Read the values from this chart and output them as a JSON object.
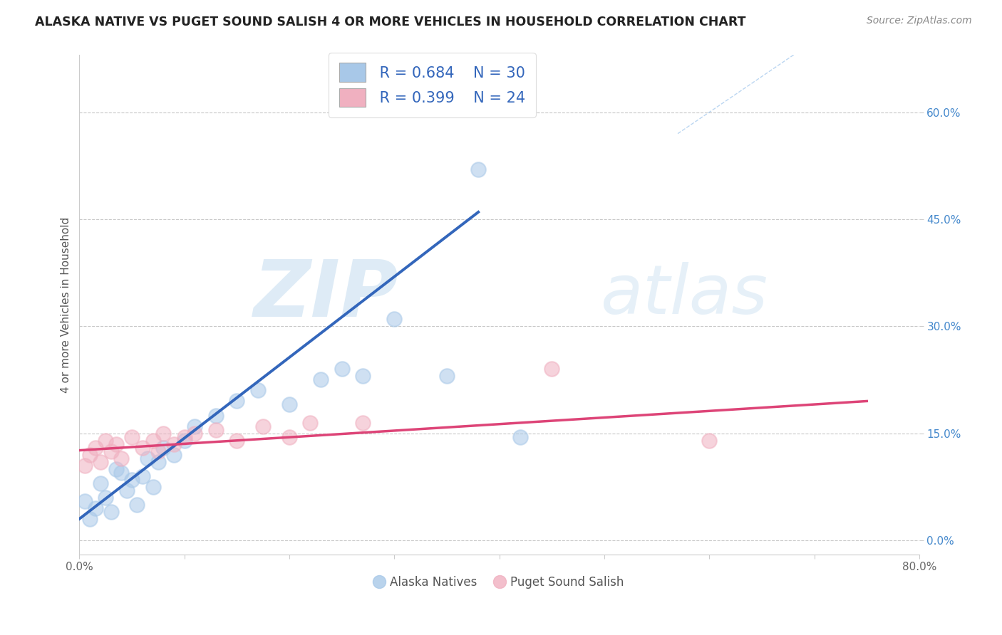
{
  "title": "ALASKA NATIVE VS PUGET SOUND SALISH 4 OR MORE VEHICLES IN HOUSEHOLD CORRELATION CHART",
  "source": "Source: ZipAtlas.com",
  "ylabel": "4 or more Vehicles in Household",
  "xlim": [
    0.0,
    0.8
  ],
  "ylim": [
    -0.02,
    0.68
  ],
  "xticks": [
    0.0,
    0.1,
    0.2,
    0.3,
    0.4,
    0.5,
    0.6,
    0.7,
    0.8
  ],
  "yticks": [
    0.0,
    0.15,
    0.3,
    0.45,
    0.6
  ],
  "ytick_labels": [
    "0.0%",
    "15.0%",
    "30.0%",
    "45.0%",
    "60.0%"
  ],
  "xtick_labels": [
    "0.0%",
    "",
    "",
    "",
    "",
    "",
    "",
    "",
    "80.0%"
  ],
  "grid_color": "#c8c8c8",
  "background_color": "#ffffff",
  "watermark_zip": "ZIP",
  "watermark_atlas": "atlas",
  "watermark_color_zip": "#c8dff0",
  "watermark_color_atlas": "#c8dff0",
  "blue_color": "#a8c8e8",
  "pink_color": "#f0b0c0",
  "blue_line_color": "#3366bb",
  "pink_line_color": "#dd4477",
  "legend_R_blue": "R = 0.684",
  "legend_N_blue": "N = 30",
  "legend_R_pink": "R = 0.399",
  "legend_N_pink": "N = 24",
  "alaska_x": [
    0.005,
    0.01,
    0.015,
    0.02,
    0.025,
    0.03,
    0.035,
    0.04,
    0.045,
    0.05,
    0.055,
    0.06,
    0.065,
    0.07,
    0.075,
    0.08,
    0.09,
    0.1,
    0.11,
    0.13,
    0.15,
    0.17,
    0.2,
    0.23,
    0.25,
    0.27,
    0.3,
    0.35,
    0.38,
    0.42
  ],
  "alaska_y": [
    0.055,
    0.03,
    0.045,
    0.08,
    0.06,
    0.04,
    0.1,
    0.095,
    0.07,
    0.085,
    0.05,
    0.09,
    0.115,
    0.075,
    0.11,
    0.13,
    0.12,
    0.14,
    0.16,
    0.175,
    0.195,
    0.21,
    0.19,
    0.225,
    0.24,
    0.23,
    0.31,
    0.23,
    0.52,
    0.145
  ],
  "salish_x": [
    0.005,
    0.01,
    0.015,
    0.02,
    0.025,
    0.03,
    0.035,
    0.04,
    0.05,
    0.06,
    0.07,
    0.075,
    0.08,
    0.09,
    0.1,
    0.11,
    0.13,
    0.15,
    0.175,
    0.2,
    0.22,
    0.27,
    0.45,
    0.6
  ],
  "salish_y": [
    0.105,
    0.12,
    0.13,
    0.11,
    0.14,
    0.125,
    0.135,
    0.115,
    0.145,
    0.13,
    0.14,
    0.125,
    0.15,
    0.135,
    0.145,
    0.15,
    0.155,
    0.14,
    0.16,
    0.145,
    0.165,
    0.165,
    0.24,
    0.14
  ],
  "ref_line_x": [
    0.57,
    0.8
  ],
  "ref_line_y": [
    0.57,
    0.8
  ],
  "blue_trend_x": [
    0.0,
    0.38
  ],
  "blue_trend_y": [
    0.03,
    0.46
  ],
  "pink_trend_x": [
    0.0,
    0.75
  ],
  "pink_trend_y": [
    0.126,
    0.195
  ]
}
